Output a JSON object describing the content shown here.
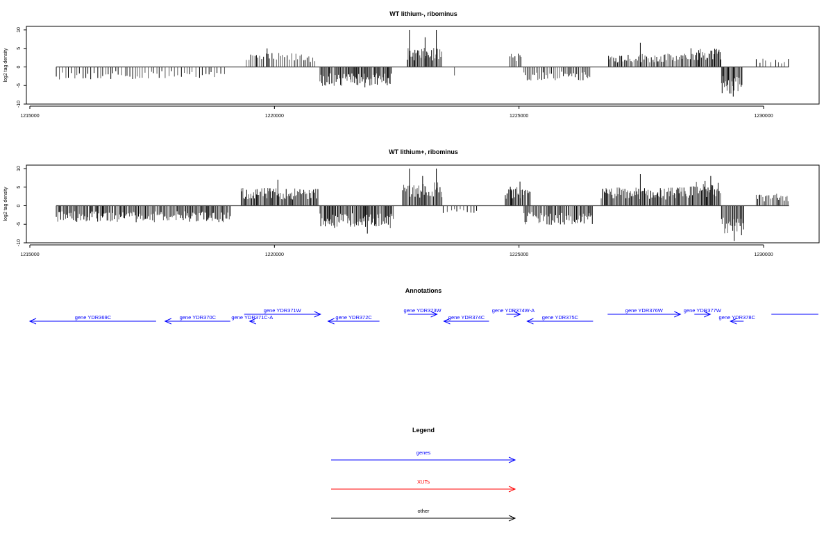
{
  "chart_data": [
    {
      "type": "bar",
      "title": "WT lithium-, ribominus",
      "ylabel": "log2 tag density",
      "xlabel": "",
      "xlim": [
        1214930,
        1231120
      ],
      "ylim": [
        -10,
        10
      ],
      "xticks": [
        1215000,
        1220000,
        1225000,
        1230000
      ],
      "yticks": [
        10,
        5,
        0,
        -5,
        -10
      ],
      "baseline": [
        1215540,
        1230520
      ],
      "regions": [
        {
          "start": 1215540,
          "end": 1219000,
          "sign": -1,
          "amp": 2.5,
          "density": 0.35
        },
        {
          "start": 1219425,
          "end": 1220845,
          "sign": 1,
          "amp": 2.8,
          "density": 0.5
        },
        {
          "start": 1220930,
          "end": 1222400,
          "sign": -1,
          "amp": 3.8,
          "density": 1
        },
        {
          "start": 1222715,
          "end": 1223425,
          "sign": 1,
          "amp": 3.8,
          "density": 1
        },
        {
          "start": 1223680,
          "end": 1223700,
          "sign": -1,
          "amp": 3,
          "density": 1
        },
        {
          "start": 1224815,
          "end": 1225060,
          "sign": 1,
          "amp": 2.8,
          "density": 0.7
        },
        {
          "start": 1225100,
          "end": 1226475,
          "sign": -1,
          "amp": 2.8,
          "density": 0.6
        },
        {
          "start": 1226830,
          "end": 1228460,
          "sign": 1,
          "amp": 2.7,
          "density": 0.75
        },
        {
          "start": 1228500,
          "end": 1229140,
          "sign": 1,
          "amp": 3.8,
          "density": 1
        },
        {
          "start": 1229140,
          "end": 1229570,
          "sign": -1,
          "amp": 5.5,
          "density": 1
        },
        {
          "start": 1229850,
          "end": 1230520,
          "sign": 1,
          "amp": 1.8,
          "density": 0.25
        }
      ],
      "peaks": [
        [
          1222760,
          10
        ],
        [
          1223310,
          10
        ],
        [
          1223080,
          8
        ],
        [
          1227480,
          6.5
        ],
        [
          1229380,
          -8
        ],
        [
          1219850,
          5
        ],
        [
          1221850,
          -5.5
        ]
      ]
    },
    {
      "type": "bar",
      "title": "WT lithium+, ribominus",
      "ylabel": "log2 tag density",
      "xlabel": "",
      "xlim": [
        1214930,
        1231120
      ],
      "ylim": [
        -10,
        10
      ],
      "xticks": [
        1215000,
        1220000,
        1225000,
        1230000
      ],
      "yticks": [
        10,
        5,
        0,
        -5,
        -10
      ],
      "baseline": [
        1215540,
        1230520
      ],
      "regions": [
        {
          "start": 1215540,
          "end": 1219100,
          "sign": -1,
          "amp": 3.3,
          "density": 0.9
        },
        {
          "start": 1219320,
          "end": 1220900,
          "sign": 1,
          "amp": 3.6,
          "density": 1
        },
        {
          "start": 1220930,
          "end": 1222440,
          "sign": -1,
          "amp": 4.5,
          "density": 1
        },
        {
          "start": 1222620,
          "end": 1223425,
          "sign": 1,
          "amp": 4.8,
          "density": 1
        },
        {
          "start": 1223450,
          "end": 1224150,
          "sign": -1,
          "amp": 1.5,
          "density": 0.3
        },
        {
          "start": 1224720,
          "end": 1225250,
          "sign": 1,
          "amp": 3.8,
          "density": 1
        },
        {
          "start": 1225100,
          "end": 1226520,
          "sign": -1,
          "amp": 3.8,
          "density": 0.9
        },
        {
          "start": 1226680,
          "end": 1228500,
          "sign": 1,
          "amp": 3.7,
          "density": 1
        },
        {
          "start": 1228500,
          "end": 1229140,
          "sign": 1,
          "amp": 5,
          "density": 1
        },
        {
          "start": 1229140,
          "end": 1229600,
          "sign": -1,
          "amp": 6,
          "density": 1
        },
        {
          "start": 1229850,
          "end": 1230520,
          "sign": 1,
          "amp": 2.5,
          "density": 0.7
        }
      ],
      "peaks": [
        [
          1222760,
          10
        ],
        [
          1223310,
          10
        ],
        [
          1223030,
          8
        ],
        [
          1220070,
          7
        ],
        [
          1227480,
          8.5
        ],
        [
          1228920,
          8
        ],
        [
          1229400,
          -9.5
        ],
        [
          1221900,
          -7.5
        ],
        [
          1225020,
          6.5
        ]
      ]
    }
  ],
  "annotations": {
    "title": "Annotations",
    "genes": [
      {
        "label": "gene YDR369C",
        "start": 1215000,
        "end": 1217581,
        "strand": "-",
        "row": "lower"
      },
      {
        "label": "gene YDR370C",
        "start": 1217765,
        "end": 1219098,
        "strand": "-",
        "row": "lower"
      },
      {
        "label": "gene YDR371C-A",
        "start": 1219495,
        "end": 1219595,
        "strand": "-",
        "row": "lower"
      },
      {
        "label": "gene YDR371W",
        "start": 1219382,
        "end": 1220942,
        "strand": "+",
        "row": "upper"
      },
      {
        "label": "gene YDR372C",
        "start": 1221097,
        "end": 1222147,
        "strand": "-",
        "row": "lower"
      },
      {
        "label": "gene YDR373W",
        "start": 1222728,
        "end": 1223324,
        "strand": "+",
        "row": "upper"
      },
      {
        "label": "gene YDR374C",
        "start": 1223465,
        "end": 1224387,
        "strand": "-",
        "row": "lower"
      },
      {
        "label": "gene YDR374W-A",
        "start": 1224741,
        "end": 1225025,
        "strand": "+",
        "row": "upper"
      },
      {
        "label": "gene YDR375C",
        "start": 1225167,
        "end": 1226514,
        "strand": "-",
        "row": "lower"
      },
      {
        "label": "gene YDR376W",
        "start": 1226812,
        "end": 1228301,
        "strand": "+",
        "row": "upper"
      },
      {
        "label": "gene YDR377W",
        "start": 1228585,
        "end": 1228911,
        "strand": "+",
        "row": "upper"
      },
      {
        "label": "gene YDR378C",
        "start": 1229322,
        "end": 1229592,
        "strand": "-",
        "row": "lower"
      },
      {
        "label": "",
        "start": 1230159,
        "end": 1231120,
        "strand": "none",
        "row": "upper"
      }
    ]
  },
  "legend": {
    "title": "Legend",
    "items": [
      {
        "label": "genes",
        "color": "#0000ff"
      },
      {
        "label": "XUTs",
        "color": "#ff0000"
      },
      {
        "label": "other",
        "color": "#000000"
      }
    ]
  }
}
